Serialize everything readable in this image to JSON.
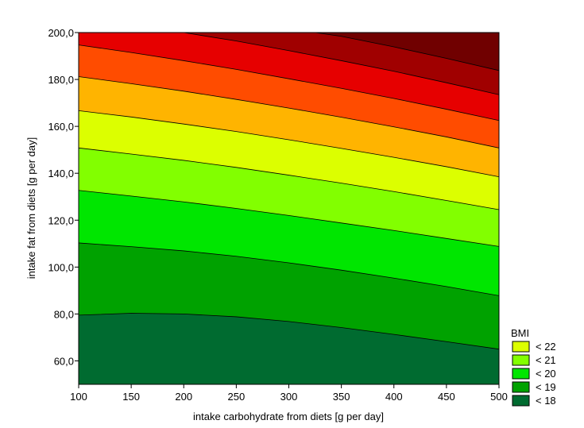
{
  "chart_data": {
    "type": "contour",
    "xlabel": "intake carbohydrate from diets [g per day]",
    "ylabel": "intake fat from diets [g per day]",
    "xlim": [
      100,
      500
    ],
    "ylim": [
      50,
      200
    ],
    "x_ticks": [
      100,
      150,
      200,
      250,
      300,
      350,
      400,
      450,
      500
    ],
    "y_ticks": [
      60,
      80,
      100,
      120,
      140,
      160,
      180,
      200
    ],
    "y_tick_labels": [
      "60,0",
      "80,0",
      "100,0",
      "120,0",
      "140,0",
      "160,0",
      "180,0",
      "200,0"
    ],
    "legend_title": "BMI",
    "legend_entries": [
      {
        "label": "< 22",
        "color": "#dcff00"
      },
      {
        "label": "< 21",
        "color": "#82ff00"
      },
      {
        "label": "< 20",
        "color": "#00e600"
      },
      {
        "label": "< 19",
        "color": "#00a200"
      },
      {
        "label": "< 18",
        "color": "#006b30"
      }
    ],
    "band_colors": [
      "#006b30",
      "#00a200",
      "#00e600",
      "#82ff00",
      "#dcff00",
      "#ffb400",
      "#ff4c00",
      "#e60000",
      "#a00000",
      "#700000"
    ],
    "contour_lines": [
      {
        "points": [
          [
            100,
            79.5
          ],
          [
            150,
            80.3
          ],
          [
            200,
            80.0
          ],
          [
            250,
            78.8
          ],
          [
            300,
            76.8
          ],
          [
            350,
            74.2
          ],
          [
            400,
            71.3
          ],
          [
            450,
            68.2
          ],
          [
            500,
            65.0
          ]
        ]
      },
      {
        "points": [
          [
            100,
            110.3
          ],
          [
            150,
            108.7
          ],
          [
            200,
            106.9
          ],
          [
            250,
            104.6
          ],
          [
            300,
            101.8
          ],
          [
            350,
            98.7
          ],
          [
            400,
            95.3
          ],
          [
            450,
            91.7
          ],
          [
            500,
            87.8
          ]
        ]
      },
      {
        "points": [
          [
            100,
            132.7
          ],
          [
            150,
            130.3
          ],
          [
            200,
            127.8
          ],
          [
            250,
            125.0
          ],
          [
            300,
            122.0
          ],
          [
            350,
            118.8
          ],
          [
            400,
            115.6
          ],
          [
            450,
            112.2
          ],
          [
            500,
            108.8
          ]
        ]
      },
      {
        "points": [
          [
            100,
            150.8
          ],
          [
            150,
            148.2
          ],
          [
            200,
            145.5
          ],
          [
            250,
            142.5
          ],
          [
            300,
            139.2
          ],
          [
            350,
            135.8
          ],
          [
            400,
            132.2
          ],
          [
            450,
            128.4
          ],
          [
            500,
            124.5
          ]
        ]
      },
      {
        "points": [
          [
            100,
            166.7
          ],
          [
            150,
            164.0
          ],
          [
            200,
            161.0
          ],
          [
            250,
            157.8
          ],
          [
            300,
            154.3
          ],
          [
            350,
            150.6
          ],
          [
            400,
            146.8
          ],
          [
            450,
            142.8
          ],
          [
            500,
            138.5
          ]
        ]
      },
      {
        "points": [
          [
            100,
            181.2
          ],
          [
            150,
            178.2
          ],
          [
            200,
            175.0
          ],
          [
            250,
            171.5
          ],
          [
            300,
            167.8
          ],
          [
            350,
            163.9
          ],
          [
            400,
            159.8
          ],
          [
            450,
            155.5
          ],
          [
            500,
            150.8
          ]
        ]
      },
      {
        "points": [
          [
            100,
            194.7
          ],
          [
            150,
            191.5
          ],
          [
            200,
            188.0
          ],
          [
            250,
            184.3
          ],
          [
            300,
            180.3
          ],
          [
            350,
            176.2
          ],
          [
            400,
            171.9
          ],
          [
            450,
            167.3
          ],
          [
            500,
            162.5
          ]
        ]
      },
      {
        "points": [
          [
            200,
            200.0
          ],
          [
            250,
            196.4
          ],
          [
            300,
            192.3
          ],
          [
            350,
            188.0
          ],
          [
            400,
            183.5
          ],
          [
            450,
            178.6
          ],
          [
            500,
            173.5
          ]
        ]
      },
      {
        "points": [
          [
            325,
            200.0
          ],
          [
            350,
            198.4
          ],
          [
            400,
            193.9
          ],
          [
            450,
            189.0
          ],
          [
            500,
            183.8
          ]
        ]
      }
    ]
  }
}
